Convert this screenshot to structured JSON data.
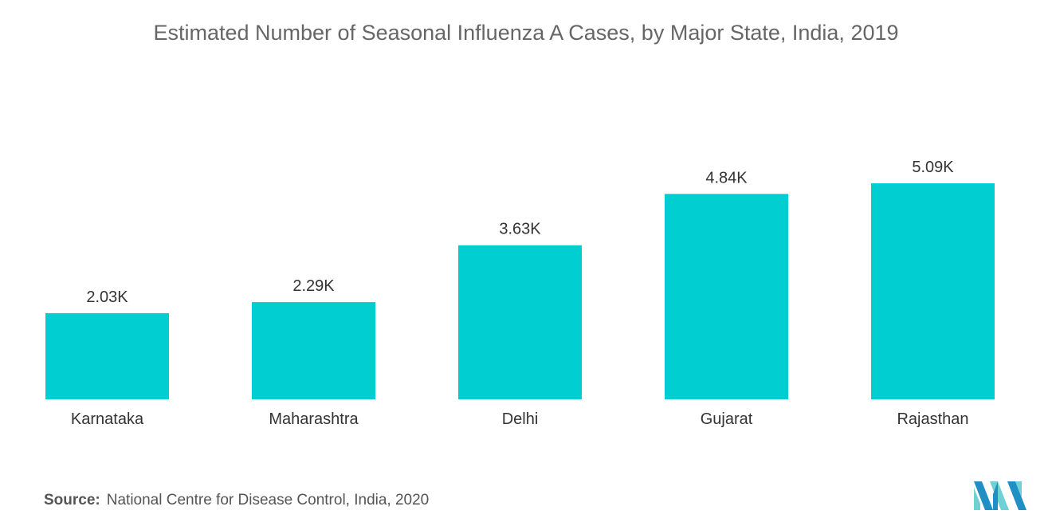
{
  "chart_data": {
    "type": "bar",
    "title": "Estimated Number of Seasonal Influenza A Cases, by Major State, India, 2019",
    "categories": [
      "Karnataka",
      "Maharashtra",
      "Delhi",
      "Gujarat",
      "Rajasthan"
    ],
    "values": [
      2.03,
      2.29,
      3.63,
      4.84,
      5.09
    ],
    "data_labels": [
      "2.03K",
      "2.29K",
      "3.63K",
      "4.84K",
      "5.09K"
    ],
    "xlabel": "",
    "ylabel": "",
    "ylim": [
      0,
      5.09
    ],
    "grid": false,
    "legend": "none",
    "bar_color": "#00ced1"
  },
  "source": {
    "label": "Source:",
    "text": "National Centre for Disease Control, India, 2020"
  },
  "logo": {
    "icon": "mordor-intelligence-logo-icon",
    "colors": [
      "#1f8fc4",
      "#6fd0d6"
    ]
  }
}
